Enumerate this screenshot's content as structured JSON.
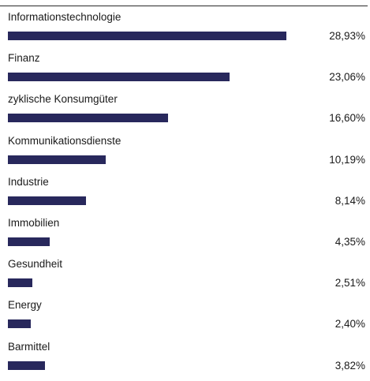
{
  "chart_data": {
    "type": "bar",
    "orientation": "horizontal",
    "categories": [
      "Informationstechnologie",
      "Finanz",
      "zyklische Konsumgüter",
      "Kommunikationsdienste",
      "Industrie",
      "Immobilien",
      "Gesundheit",
      "Energy",
      "Barmittel"
    ],
    "values": [
      28.93,
      23.06,
      16.6,
      10.19,
      8.14,
      4.35,
      2.51,
      2.4,
      3.82
    ],
    "value_labels": [
      "28,93%",
      "23,06%",
      "16,60%",
      "10,19%",
      "8,14%",
      "4,35%",
      "2,51%",
      "2,40%",
      "3,82%"
    ],
    "xlim": [
      0,
      28.93
    ],
    "grid": false,
    "legend": "none",
    "bar_color": "#28285c"
  }
}
